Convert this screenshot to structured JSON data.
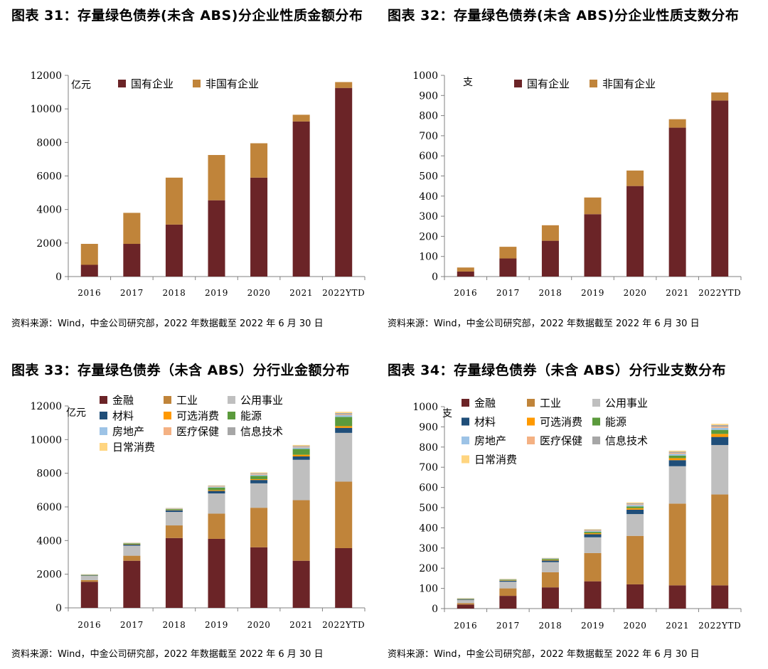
{
  "chart_data": [
    {
      "type": "bar",
      "stacked": true,
      "title": "图表 31：存量绿色债券(未含 ABS)分企业性质金额分布",
      "unit": "亿元",
      "source": "资料来源：Wind，中金公司研究部，2022 年数据截至 2022 年 6 月 30 日",
      "categories": [
        "2016",
        "2017",
        "2018",
        "2019",
        "2020",
        "2021",
        "2022YTD"
      ],
      "ylim": [
        0,
        12000
      ],
      "yticks": [
        0,
        2000,
        4000,
        6000,
        8000,
        10000,
        12000
      ],
      "legend_position": "top",
      "series": [
        {
          "name": "国有企业",
          "color": "#6B2427",
          "values": [
            700,
            1950,
            3100,
            4550,
            5900,
            9250,
            11250
          ]
        },
        {
          "name": "非国有企业",
          "color": "#C0843A",
          "values": [
            1250,
            1850,
            2800,
            2700,
            2050,
            400,
            350
          ]
        }
      ]
    },
    {
      "type": "bar",
      "stacked": true,
      "title": "图表 32：存量绿色债券(未含 ABS)分企业性质支数分布",
      "unit": "支",
      "source": "资料来源：Wind，中金公司研究部，2022 年数据截至 2022 年 6 月 30 日",
      "categories": [
        "2016",
        "2017",
        "2018",
        "2019",
        "2020",
        "2021",
        "2022YTD"
      ],
      "ylim": [
        0,
        1000
      ],
      "yticks": [
        0,
        100,
        200,
        300,
        400,
        500,
        600,
        700,
        800,
        900,
        1000
      ],
      "legend_position": "top",
      "series": [
        {
          "name": "国有企业",
          "color": "#6B2427",
          "values": [
            25,
            90,
            178,
            310,
            450,
            740,
            875
          ]
        },
        {
          "name": "非国有企业",
          "color": "#C0843A",
          "values": [
            20,
            58,
            77,
            83,
            77,
            42,
            40
          ]
        }
      ]
    },
    {
      "type": "bar",
      "stacked": true,
      "title": "图表 33：存量绿色债券（未含 ABS）分行业金额分布",
      "unit": "亿元",
      "source": "资料来源：Wind，中金公司研究部，2022 年数据截至 2022 年 6 月 30 日",
      "categories": [
        "2016",
        "2017",
        "2018",
        "2019",
        "2020",
        "2021",
        "2022YTD"
      ],
      "ylim": [
        0,
        12000
      ],
      "yticks": [
        0,
        2000,
        4000,
        6000,
        8000,
        10000,
        12000
      ],
      "legend_position": "top",
      "series": [
        {
          "name": "金融",
          "color": "#6B2427",
          "values": [
            1550,
            2800,
            4150,
            4100,
            3600,
            2800,
            3550
          ]
        },
        {
          "name": "工业",
          "color": "#C0843A",
          "values": [
            100,
            300,
            750,
            1500,
            2350,
            3600,
            3950
          ]
        },
        {
          "name": "公用事业",
          "color": "#BFBFBF",
          "values": [
            250,
            600,
            800,
            1200,
            1450,
            2400,
            2900
          ]
        },
        {
          "name": "材料",
          "color": "#1F4E79",
          "values": [
            20,
            60,
            100,
            150,
            200,
            200,
            300
          ]
        },
        {
          "name": "可选消费",
          "color": "#FF9900",
          "values": [
            10,
            20,
            20,
            50,
            50,
            100,
            100
          ]
        },
        {
          "name": "能源",
          "color": "#5B9A3C",
          "values": [
            30,
            50,
            50,
            150,
            200,
            350,
            550
          ]
        },
        {
          "name": "房地产",
          "color": "#9DC3E6",
          "values": [
            10,
            20,
            20,
            40,
            60,
            80,
            100
          ]
        },
        {
          "name": "医疗保健",
          "color": "#F4B183",
          "values": [
            10,
            10,
            20,
            30,
            50,
            50,
            50
          ]
        },
        {
          "name": "信息技术",
          "color": "#A6A6A6",
          "values": [
            10,
            10,
            20,
            40,
            50,
            50,
            80
          ]
        },
        {
          "name": "日常消费",
          "color": "#FFD580",
          "values": [
            10,
            10,
            10,
            20,
            40,
            50,
            70
          ]
        }
      ]
    },
    {
      "type": "bar",
      "stacked": true,
      "title": "图表 34：存量绿色债券（未含 ABS）分行业支数分布",
      "unit": "支",
      "source": "资料来源：Wind，中金公司研究部，2022 年数据截至 2022 年 6 月 30 日",
      "categories": [
        "2016",
        "2017",
        "2018",
        "2019",
        "2020",
        "2021",
        "2022YTD"
      ],
      "ylim": [
        0,
        1000
      ],
      "yticks": [
        0,
        100,
        200,
        300,
        400,
        500,
        600,
        700,
        800,
        900,
        1000
      ],
      "legend_position": "top",
      "series": [
        {
          "name": "金融",
          "color": "#6B2427",
          "values": [
            20,
            63,
            105,
            135,
            120,
            115,
            115
          ]
        },
        {
          "name": "工业",
          "color": "#C0843A",
          "values": [
            7,
            37,
            75,
            140,
            240,
            405,
            450
          ]
        },
        {
          "name": "公用事业",
          "color": "#BFBFBF",
          "values": [
            15,
            33,
            50,
            78,
            108,
            185,
            245
          ]
        },
        {
          "name": "材料",
          "color": "#1F4E79",
          "values": [
            3,
            5,
            8,
            15,
            22,
            30,
            40
          ]
        },
        {
          "name": "可选消费",
          "color": "#FF9900",
          "values": [
            1,
            2,
            3,
            5,
            7,
            10,
            15
          ]
        },
        {
          "name": "能源",
          "color": "#5B9A3C",
          "values": [
            2,
            3,
            5,
            7,
            9,
            13,
            20
          ]
        },
        {
          "name": "房地产",
          "color": "#9DC3E6",
          "values": [
            1,
            1,
            2,
            4,
            7,
            8,
            10
          ]
        },
        {
          "name": "医疗保健",
          "color": "#F4B183",
          "values": [
            1,
            1,
            1,
            3,
            4,
            5,
            6
          ]
        },
        {
          "name": "信息技术",
          "color": "#A6A6A6",
          "values": [
            1,
            1,
            1,
            4,
            5,
            6,
            8
          ]
        },
        {
          "name": "日常消费",
          "color": "#FFD580",
          "values": [
            1,
            1,
            1,
            2,
            4,
            5,
            6
          ]
        }
      ]
    }
  ]
}
